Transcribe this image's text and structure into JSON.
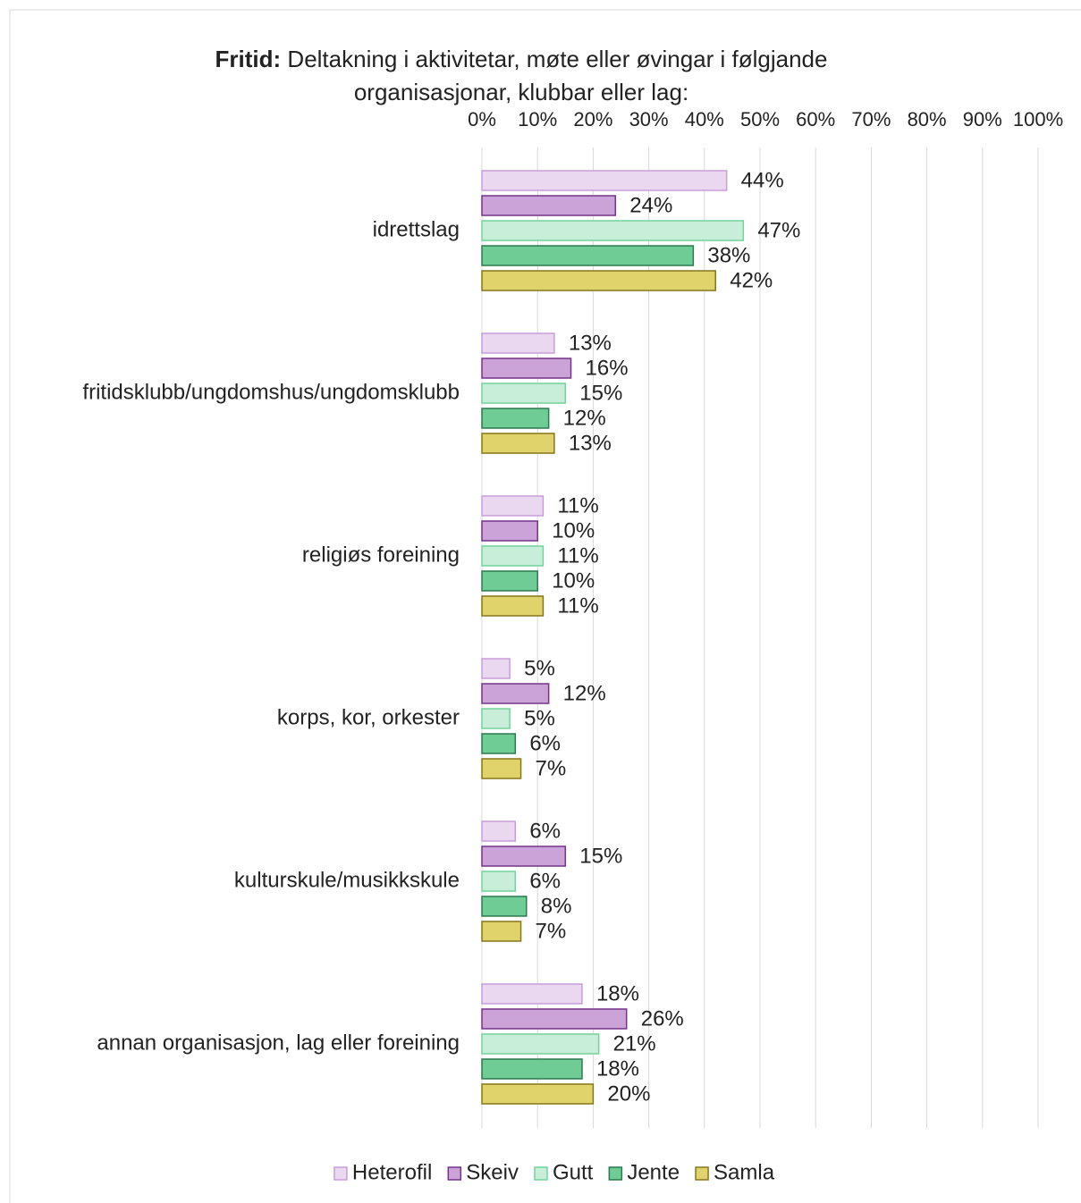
{
  "chart_data": {
    "type": "barh",
    "title_lead": "Fritid:",
    "title": "Deltakning i aktivitetar, møte eller øvingar i følgjande organisasjonar, klubbar eller lag:",
    "categories": [
      "idrettslag",
      "fritidsklubb/ungdomshus/ungdomsklubb",
      "religiøs foreining",
      "korps, kor, orkester",
      "kulturskule/musikkskule",
      "annan organisasjon, lag eller foreining"
    ],
    "series": [
      {
        "name": "Heterofil",
        "color": "#ead7f0",
        "edgecolor": "#c99dd8",
        "values": [
          44,
          13,
          11,
          5,
          6,
          18
        ],
        "value_labels": [
          "44%",
          "13%",
          "11%",
          "5%",
          "6%",
          "18%"
        ]
      },
      {
        "name": "Skeiv",
        "color": "#cba3d8",
        "edgecolor": "#74348a",
        "values": [
          24,
          16,
          10,
          12,
          15,
          26
        ],
        "value_labels": [
          "24%",
          "16%",
          "10%",
          "12%",
          "15%",
          "26%"
        ]
      },
      {
        "name": "Gutt",
        "color": "#c8eed9",
        "edgecolor": "#72d49c",
        "values": [
          47,
          15,
          11,
          5,
          6,
          21
        ],
        "value_labels": [
          "47%",
          "15%",
          "11%",
          "5%",
          "6%",
          "21%"
        ]
      },
      {
        "name": "Jente",
        "color": "#6fcc95",
        "edgecolor": "#2c7a4e",
        "values": [
          38,
          12,
          10,
          6,
          8,
          18
        ],
        "value_labels": [
          "38%",
          "12%",
          "10%",
          "6%",
          "8%",
          "18%"
        ]
      },
      {
        "name": "Samla",
        "color": "#e0d36b",
        "edgecolor": "#86761c",
        "values": [
          42,
          13,
          11,
          7,
          7,
          20
        ],
        "value_labels": [
          "42%",
          "13%",
          "11%",
          "7%",
          "7%",
          "20%"
        ]
      }
    ],
    "xlim": [
      0,
      100
    ],
    "xticks": [
      {
        "value": 0,
        "label": "0%"
      },
      {
        "value": 10,
        "label": "10%"
      },
      {
        "value": 20,
        "label": "20%"
      },
      {
        "value": 30,
        "label": "30%"
      },
      {
        "value": 40,
        "label": "40%"
      },
      {
        "value": 50,
        "label": "50%"
      },
      {
        "value": 60,
        "label": "60%"
      },
      {
        "value": 70,
        "label": "70%"
      },
      {
        "value": 80,
        "label": "80%"
      },
      {
        "value": 90,
        "label": "90%"
      },
      {
        "value": 100,
        "label": "100%"
      }
    ],
    "grid": true,
    "legend": "bottom"
  }
}
